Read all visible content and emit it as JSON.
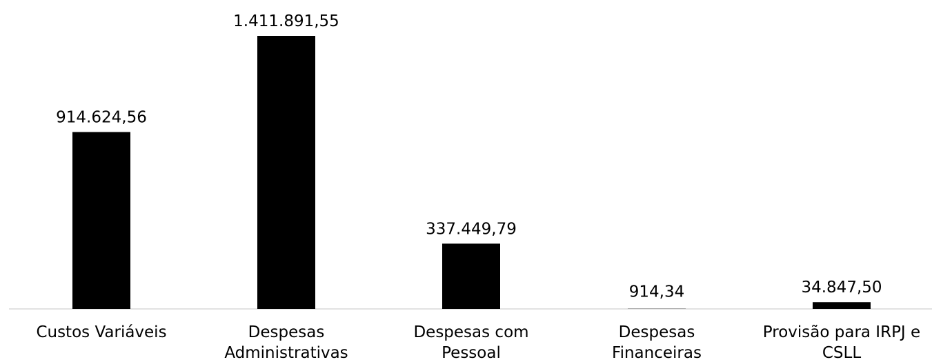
{
  "chart_data": {
    "type": "bar",
    "title": "",
    "xlabel": "",
    "ylabel": "",
    "categories": [
      [
        "Custos Variáveis"
      ],
      [
        "Despesas",
        "Administrativas"
      ],
      [
        "Despesas com",
        "Pessoal"
      ],
      [
        "Despesas",
        "Financeiras"
      ],
      [
        "Provisão para IRPJ e",
        "CSLL"
      ]
    ],
    "values": [
      914624.56,
      1411891.55,
      337449.79,
      914.34,
      34847.5
    ],
    "value_labels": [
      "914.624,56",
      "1.411.891,55",
      "337.449,79",
      "914,34",
      "34.847,50"
    ],
    "ylim": [
      0,
      1411891.55
    ],
    "grid": false,
    "legend": "none",
    "bar_color": "#000000",
    "axis_color": "#d9d9d9"
  }
}
